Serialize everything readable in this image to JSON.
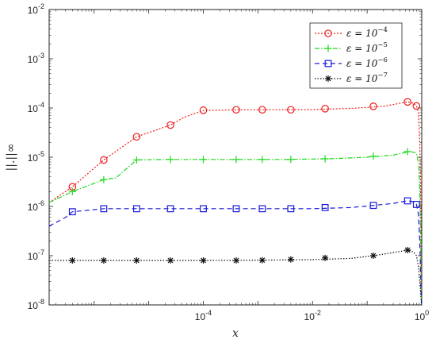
{
  "chart_data": {
    "type": "line",
    "title": "",
    "xlabel": "x",
    "ylabel": "||.||∞",
    "xscale": "log",
    "yscale": "log",
    "xlim": [
      1.5e-07,
      1
    ],
    "ylim": [
      1e-08,
      0.01
    ],
    "grid": false,
    "legend_position": "top-right",
    "x_ticks": [
      {
        "value": 0.0001,
        "base": "10",
        "exp": "-4"
      },
      {
        "value": 0.01,
        "base": "10",
        "exp": "-2"
      },
      {
        "value": 1,
        "base": "10",
        "exp": "0"
      }
    ],
    "y_ticks": [
      {
        "value": 1e-08,
        "base": "10",
        "exp": "-8"
      },
      {
        "value": 1e-07,
        "base": "10",
        "exp": "-7"
      },
      {
        "value": 1e-06,
        "base": "10",
        "exp": "-6"
      },
      {
        "value": 1e-05,
        "base": "10",
        "exp": "-5"
      },
      {
        "value": 0.0001,
        "base": "10",
        "exp": "-4"
      },
      {
        "value": 0.001,
        "base": "10",
        "exp": "-3"
      },
      {
        "value": 0.01,
        "base": "10",
        "exp": "-2"
      }
    ],
    "series": [
      {
        "name": "ε = 10⁻⁴",
        "label_pre": "ε = 10",
        "label_exp": "−4",
        "color": "#ee1c1c",
        "dash": "2,2",
        "marker": "circle",
        "x": [
          1.5e-07,
          4e-07,
          1.5e-06,
          6e-06,
          2.5e-05,
          4.5e-05,
          0.0001,
          0.0002,
          0.0004,
          0.0008,
          0.0012,
          0.003,
          0.01,
          0.05,
          0.2,
          0.55,
          0.7,
          0.8,
          0.87,
          0.92,
          0.95,
          0.97,
          0.99
        ],
        "y": [
          1.2e-06,
          2.5e-06,
          8.8e-06,
          2.6e-05,
          4.5e-05,
          6.5e-05,
          8.9e-05,
          9e-05,
          9.2e-05,
          9.2e-05,
          9.2e-05,
          9.2e-05,
          9.3e-05,
          9.8e-05,
          0.000108,
          0.000133,
          0.000125,
          0.00011,
          8e-05,
          2e-05,
          3e-06,
          3e-07,
          1e-08
        ],
        "markers_x": [
          4e-07,
          1.5e-06,
          6e-06,
          2.5e-05,
          0.0001,
          0.0004,
          0.0012,
          0.004,
          0.017,
          0.13,
          0.55,
          0.8
        ],
        "markers_y": [
          2.5e-06,
          8.8e-06,
          2.6e-05,
          4.5e-05,
          9e-05,
          9.2e-05,
          9.2e-05,
          9.2e-05,
          9.7e-05,
          0.000108,
          0.000133,
          0.00011
        ]
      },
      {
        "name": "ε = 10⁻⁵",
        "label_pre": "ε = 10",
        "label_exp": "−5",
        "color": "#1ed81e",
        "dash": "6,2,1.5,2",
        "marker": "plus",
        "x": [
          1.5e-07,
          4e-07,
          1.5e-06,
          2.5e-06,
          6e-06,
          2e-05,
          0.0001,
          0.0005,
          0.003,
          0.02,
          0.1,
          0.3,
          0.6,
          0.75,
          0.82,
          0.88,
          0.92,
          0.95,
          0.97,
          0.99
        ],
        "y": [
          1.2e-06,
          2e-06,
          3.5e-06,
          3.8e-06,
          8.8e-06,
          9e-06,
          9e-06,
          9e-06,
          9e-06,
          9.3e-06,
          1e-05,
          1.1e-05,
          1.3e-05,
          1.25e-05,
          1.1e-05,
          7e-06,
          2e-06,
          3e-07,
          5e-08,
          1e-08
        ],
        "markers_x": [
          4e-07,
          1.5e-06,
          6e-06,
          2.5e-05,
          0.0001,
          0.0004,
          0.0012,
          0.004,
          0.017,
          0.13,
          0.55
        ],
        "markers_y": [
          2e-06,
          3.5e-06,
          8.8e-06,
          9e-06,
          9e-06,
          9e-06,
          9e-06,
          9e-06,
          9.3e-06,
          1.05e-05,
          1.3e-05
        ]
      },
      {
        "name": "ε = 10⁻⁶",
        "label_pre": "ε = 10",
        "label_exp": "−6",
        "color": "#1a1ad8",
        "dash": "6,4",
        "marker": "square",
        "x": [
          1.5e-07,
          3e-07,
          4e-07,
          1.5e-06,
          6e-06,
          3e-05,
          0.0001,
          0.001,
          0.01,
          0.05,
          0.13,
          0.3,
          0.55,
          0.7,
          0.8,
          0.87,
          0.92,
          0.95,
          0.97,
          0.99
        ],
        "y": [
          4e-07,
          6e-07,
          7.8e-07,
          9e-07,
          9e-07,
          9e-07,
          9e-07,
          9e-07,
          9e-07,
          9.5e-07,
          1.05e-06,
          1.15e-06,
          1.3e-06,
          1.25e-06,
          1.1e-06,
          7e-07,
          2e-07,
          5e-08,
          2e-08,
          1e-08
        ],
        "markers_x": [
          4e-07,
          1.5e-06,
          6e-06,
          2.5e-05,
          0.0001,
          0.0004,
          0.0012,
          0.004,
          0.017,
          0.13,
          0.55,
          0.8
        ],
        "markers_y": [
          7.8e-07,
          9e-07,
          9e-07,
          9e-07,
          9e-07,
          9e-07,
          9e-07,
          9e-07,
          9.5e-07,
          1.05e-06,
          1.3e-06,
          1.1e-06
        ]
      },
      {
        "name": "ε = 10⁻⁷",
        "label_pre": "ε = 10",
        "label_exp": "−7",
        "color": "#111111",
        "dash": "1.5,2",
        "marker": "star",
        "x": [
          1.5e-07,
          4e-07,
          1.5e-06,
          1e-05,
          0.0001,
          0.001,
          0.01,
          0.05,
          0.13,
          0.3,
          0.55,
          0.7,
          0.8,
          0.87,
          0.92,
          0.95,
          0.97,
          0.99
        ],
        "y": [
          8e-08,
          8e-08,
          8e-08,
          8e-08,
          8e-08,
          8.1e-08,
          8.3e-08,
          8.8e-08,
          1e-07,
          1.15e-07,
          1.3e-07,
          1.2e-07,
          1e-07,
          6e-08,
          3e-08,
          2e-08,
          1.3e-08,
          1e-08
        ],
        "markers_x": [
          4e-07,
          1.5e-06,
          6e-06,
          2.5e-05,
          0.0001,
          0.0004,
          0.0012,
          0.004,
          0.017,
          0.13,
          0.55
        ],
        "markers_y": [
          8e-08,
          8e-08,
          8e-08,
          8e-08,
          8e-08,
          8e-08,
          8.1e-08,
          8.4e-08,
          9e-08,
          1e-07,
          1.3e-07
        ]
      }
    ]
  }
}
